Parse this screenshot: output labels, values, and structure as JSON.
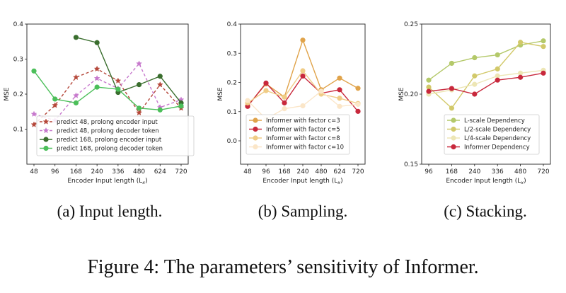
{
  "figure_caption": "Figure 4: The parameters’ sensitivity of Informer.",
  "chart_data": [
    {
      "type": "line",
      "subcaption": "(a) Input length.",
      "xlabel": "Encoder Input length (L",
      "xlabel_sub": "x",
      "xlabel_close": ")",
      "ylabel": "MSE",
      "categories": [
        "48",
        "96",
        "168",
        "240",
        "336",
        "480",
        "624",
        "720"
      ],
      "ylim": [
        0.0,
        0.4
      ],
      "yticks": [
        0.1,
        0.2,
        0.3,
        0.4
      ],
      "ytick_labels": [
        "0.1",
        "0.2",
        "0.3",
        "0.4"
      ],
      "legend_position": "lower-left",
      "series": [
        {
          "name": "predict 48, prolong encoder input",
          "color": "#b5473a",
          "dash": "4,3",
          "marker": "star",
          "values": [
            0.113,
            0.168,
            0.248,
            0.272,
            0.238,
            0.147,
            0.227,
            0.16
          ]
        },
        {
          "name": "predict 48, prolong decoder token",
          "color": "#c779cd",
          "dash": "4,3",
          "marker": "star",
          "values": [
            0.143,
            0.125,
            0.196,
            0.245,
            0.216,
            0.287,
            0.162,
            0.184
          ]
        },
        {
          "name": "predict 168, prolong encoder input",
          "color": "#3a6e2e",
          "dash": "",
          "marker": "circle",
          "values": [
            null,
            null,
            0.362,
            0.347,
            0.205,
            0.227,
            0.251,
            0.175
          ]
        },
        {
          "name": "predict 168, prolong decoder token",
          "color": "#4cbf5a",
          "dash": "",
          "marker": "circle",
          "values": [
            0.266,
            0.186,
            0.175,
            0.22,
            0.214,
            0.16,
            0.155,
            0.166
          ]
        }
      ]
    },
    {
      "type": "line",
      "subcaption": "(b) Sampling.",
      "xlabel": "Encoder Input length (L",
      "xlabel_sub": "x",
      "xlabel_close": ")",
      "ylabel": "MSE",
      "categories": [
        "48",
        "96",
        "168",
        "240",
        "480",
        "624",
        "720"
      ],
      "ylim": [
        -0.08,
        0.4
      ],
      "yticks": [
        0.0,
        0.1,
        0.2,
        0.3,
        0.4
      ],
      "ytick_labels": [
        "0.0",
        "0.1",
        "0.2",
        "0.3",
        "0.4"
      ],
      "legend_position": "lower-right",
      "series": [
        {
          "name": "Informer with factor c=3",
          "color": "#e0a34a",
          "dash": "",
          "marker": "circle",
          "values": [
            0.12,
            0.195,
            0.15,
            0.345,
            0.175,
            0.215,
            0.18
          ]
        },
        {
          "name": "Informer with factor c=5",
          "color": "#c8283c",
          "dash": "",
          "marker": "circle",
          "values": [
            0.118,
            0.198,
            0.13,
            0.222,
            0.163,
            0.175,
            0.101
          ]
        },
        {
          "name": "Informer with factor c=8",
          "color": "#f0cc86",
          "dash": "",
          "marker": "circle",
          "values": [
            0.13,
            0.172,
            0.15,
            0.24,
            0.16,
            0.146,
            0.128
          ]
        },
        {
          "name": "Informer with factor c=10",
          "color": "#fbe6c8",
          "dash": "",
          "marker": "circle",
          "values": [
            0.138,
            0.075,
            0.11,
            0.12,
            0.17,
            0.118,
            0.125
          ]
        }
      ]
    },
    {
      "type": "line",
      "subcaption": "(c) Stacking.",
      "xlabel": "Encoder Input length (L",
      "xlabel_sub": "x",
      "xlabel_close": ")",
      "ylabel": "MSE",
      "categories": [
        "96",
        "168",
        "240",
        "336",
        "480",
        "720"
      ],
      "ylim": [
        0.15,
        0.25
      ],
      "yticks": [
        0.15,
        0.2,
        0.25
      ],
      "ytick_labels": [
        "0.15",
        "0.20",
        "0.25"
      ],
      "legend_position": "lower-right",
      "series": [
        {
          "name": "L-scale Dependency",
          "color": "#b4c96a",
          "dash": "",
          "marker": "circle",
          "values": [
            0.21,
            0.222,
            0.226,
            0.228,
            0.235,
            0.238
          ]
        },
        {
          "name": "L/2-scale Dependency",
          "color": "#d2c96a",
          "dash": "",
          "marker": "circle",
          "values": [
            0.205,
            0.19,
            0.213,
            0.218,
            0.237,
            0.234
          ]
        },
        {
          "name": "L/4-scale Dependency",
          "color": "#ede6b5",
          "dash": "",
          "marker": "circle",
          "values": [
            0.2,
            0.203,
            0.207,
            0.213,
            0.215,
            0.217
          ]
        },
        {
          "name": "Informer Dependency",
          "color": "#c8283c",
          "dash": "",
          "marker": "circle",
          "values": [
            0.202,
            0.204,
            0.2,
            0.21,
            0.212,
            0.215
          ]
        }
      ]
    }
  ]
}
